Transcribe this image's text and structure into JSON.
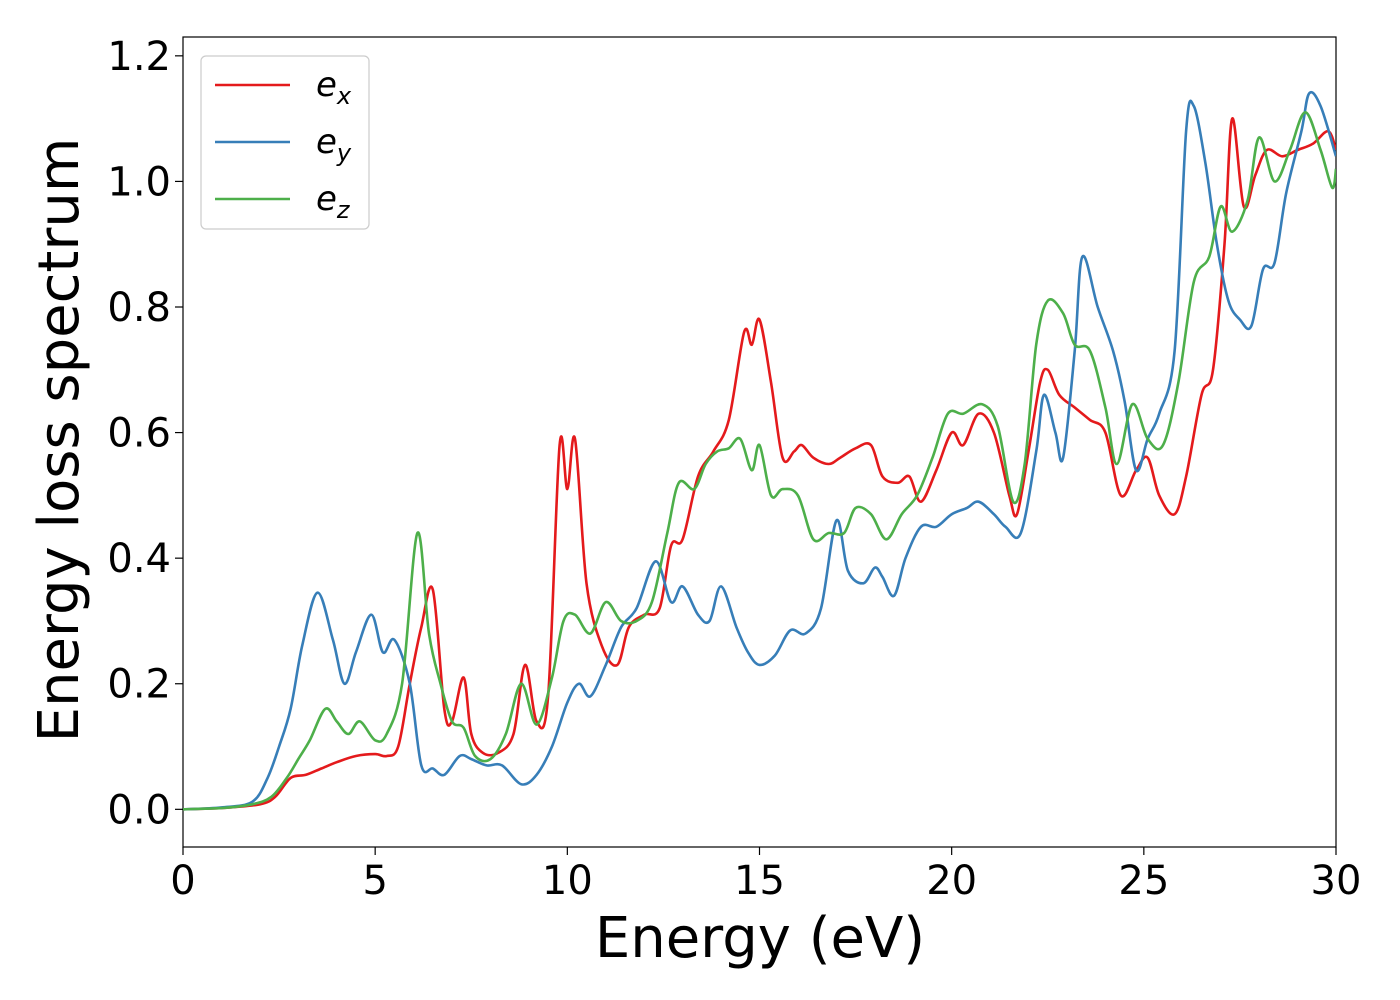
{
  "chart_data": {
    "type": "line",
    "title": "",
    "xlabel": "Energy (eV)",
    "ylabel": "Energy loss spectrum",
    "xlim": [
      0,
      30
    ],
    "ylim": [
      -0.06,
      1.23
    ],
    "xticks": [
      0,
      5,
      10,
      15,
      20,
      25,
      30
    ],
    "xtick_labels": [
      "0",
      "5",
      "10",
      "15",
      "20",
      "25",
      "30"
    ],
    "yticks": [
      0.0,
      0.2,
      0.4,
      0.6,
      0.8,
      1.0,
      1.2
    ],
    "ytick_labels": [
      "0.0",
      "0.2",
      "0.4",
      "0.6",
      "0.8",
      "1.0",
      "1.2"
    ],
    "grid": false,
    "legend_position": "top-left",
    "series": [
      {
        "name": "e",
        "subscript": "x",
        "color": "#e41a1c",
        "points": [
          [
            0,
            0
          ],
          [
            1,
            0.002
          ],
          [
            2,
            0.008
          ],
          [
            2.4,
            0.02
          ],
          [
            2.8,
            0.05
          ],
          [
            3.2,
            0.055
          ],
          [
            3.6,
            0.065
          ],
          [
            4,
            0.075
          ],
          [
            4.5,
            0.085
          ],
          [
            5,
            0.088
          ],
          [
            5.3,
            0.085
          ],
          [
            5.6,
            0.1
          ],
          [
            5.9,
            0.2
          ],
          [
            6.2,
            0.29
          ],
          [
            6.5,
            0.35
          ],
          [
            6.8,
            0.16
          ],
          [
            7,
            0.14
          ],
          [
            7.3,
            0.21
          ],
          [
            7.5,
            0.12
          ],
          [
            7.8,
            0.09
          ],
          [
            8.2,
            0.09
          ],
          [
            8.6,
            0.12
          ],
          [
            8.9,
            0.23
          ],
          [
            9.2,
            0.14
          ],
          [
            9.5,
            0.18
          ],
          [
            9.8,
            0.58
          ],
          [
            10,
            0.51
          ],
          [
            10.2,
            0.59
          ],
          [
            10.5,
            0.36
          ],
          [
            10.9,
            0.26
          ],
          [
            11.3,
            0.23
          ],
          [
            11.6,
            0.29
          ],
          [
            12,
            0.31
          ],
          [
            12.4,
            0.32
          ],
          [
            12.7,
            0.42
          ],
          [
            13,
            0.43
          ],
          [
            13.4,
            0.53
          ],
          [
            13.8,
            0.57
          ],
          [
            14.2,
            0.62
          ],
          [
            14.6,
            0.76
          ],
          [
            14.8,
            0.74
          ],
          [
            15,
            0.78
          ],
          [
            15.3,
            0.68
          ],
          [
            15.6,
            0.56
          ],
          [
            15.9,
            0.57
          ],
          [
            16.1,
            0.58
          ],
          [
            16.4,
            0.56
          ],
          [
            16.8,
            0.55
          ],
          [
            17.1,
            0.56
          ],
          [
            17.5,
            0.575
          ],
          [
            17.9,
            0.58
          ],
          [
            18.2,
            0.53
          ],
          [
            18.6,
            0.52
          ],
          [
            18.9,
            0.53
          ],
          [
            19.2,
            0.49
          ],
          [
            19.6,
            0.54
          ],
          [
            20,
            0.6
          ],
          [
            20.3,
            0.58
          ],
          [
            20.7,
            0.63
          ],
          [
            21.1,
            0.6
          ],
          [
            21.5,
            0.5
          ],
          [
            21.7,
            0.47
          ],
          [
            22,
            0.57
          ],
          [
            22.3,
            0.68
          ],
          [
            22.5,
            0.7
          ],
          [
            22.8,
            0.66
          ],
          [
            23.2,
            0.64
          ],
          [
            23.6,
            0.62
          ],
          [
            24,
            0.6
          ],
          [
            24.4,
            0.5
          ],
          [
            24.8,
            0.54
          ],
          [
            25.1,
            0.56
          ],
          [
            25.4,
            0.5
          ],
          [
            25.8,
            0.47
          ],
          [
            26.1,
            0.53
          ],
          [
            26.5,
            0.66
          ],
          [
            26.8,
            0.7
          ],
          [
            27.1,
            0.9
          ],
          [
            27.3,
            1.1
          ],
          [
            27.6,
            0.96
          ],
          [
            27.9,
            1.01
          ],
          [
            28.2,
            1.05
          ],
          [
            28.6,
            1.04
          ],
          [
            29,
            1.05
          ],
          [
            29.4,
            1.06
          ],
          [
            29.8,
            1.08
          ],
          [
            30,
            1.05
          ]
        ]
      },
      {
        "name": "e",
        "subscript": "y",
        "color": "#377eb8",
        "points": [
          [
            0,
            0
          ],
          [
            1,
            0.003
          ],
          [
            1.8,
            0.012
          ],
          [
            2.2,
            0.05
          ],
          [
            2.5,
            0.1
          ],
          [
            2.8,
            0.16
          ],
          [
            3.1,
            0.26
          ],
          [
            3.5,
            0.345
          ],
          [
            3.9,
            0.27
          ],
          [
            4.2,
            0.2
          ],
          [
            4.5,
            0.25
          ],
          [
            4.9,
            0.31
          ],
          [
            5.2,
            0.25
          ],
          [
            5.5,
            0.27
          ],
          [
            5.9,
            0.2
          ],
          [
            6.2,
            0.07
          ],
          [
            6.5,
            0.065
          ],
          [
            6.8,
            0.055
          ],
          [
            7.2,
            0.085
          ],
          [
            7.5,
            0.08
          ],
          [
            7.9,
            0.07
          ],
          [
            8.3,
            0.07
          ],
          [
            8.8,
            0.04
          ],
          [
            9.2,
            0.055
          ],
          [
            9.6,
            0.1
          ],
          [
            10,
            0.17
          ],
          [
            10.3,
            0.2
          ],
          [
            10.6,
            0.18
          ],
          [
            11,
            0.23
          ],
          [
            11.4,
            0.29
          ],
          [
            11.8,
            0.32
          ],
          [
            12.3,
            0.395
          ],
          [
            12.7,
            0.33
          ],
          [
            13,
            0.355
          ],
          [
            13.4,
            0.31
          ],
          [
            13.7,
            0.3
          ],
          [
            14,
            0.355
          ],
          [
            14.4,
            0.29
          ],
          [
            14.7,
            0.25
          ],
          [
            15,
            0.23
          ],
          [
            15.4,
            0.245
          ],
          [
            15.8,
            0.285
          ],
          [
            16.2,
            0.28
          ],
          [
            16.6,
            0.32
          ],
          [
            17,
            0.46
          ],
          [
            17.3,
            0.38
          ],
          [
            17.7,
            0.36
          ],
          [
            18,
            0.385
          ],
          [
            18.2,
            0.37
          ],
          [
            18.5,
            0.34
          ],
          [
            18.8,
            0.4
          ],
          [
            19.2,
            0.45
          ],
          [
            19.6,
            0.45
          ],
          [
            20,
            0.47
          ],
          [
            20.4,
            0.48
          ],
          [
            20.7,
            0.49
          ],
          [
            21.1,
            0.47
          ],
          [
            21.4,
            0.45
          ],
          [
            21.8,
            0.44
          ],
          [
            22.2,
            0.57
          ],
          [
            22.4,
            0.66
          ],
          [
            22.7,
            0.6
          ],
          [
            22.9,
            0.56
          ],
          [
            23.2,
            0.73
          ],
          [
            23.4,
            0.88
          ],
          [
            23.8,
            0.8
          ],
          [
            24.2,
            0.73
          ],
          [
            24.5,
            0.65
          ],
          [
            24.8,
            0.54
          ],
          [
            25.1,
            0.59
          ],
          [
            25.4,
            0.63
          ],
          [
            25.8,
            0.73
          ],
          [
            26.1,
            1.08
          ],
          [
            26.3,
            1.12
          ],
          [
            26.6,
            1.03
          ],
          [
            26.9,
            0.9
          ],
          [
            27.2,
            0.81
          ],
          [
            27.5,
            0.78
          ],
          [
            27.8,
            0.77
          ],
          [
            28.1,
            0.86
          ],
          [
            28.4,
            0.87
          ],
          [
            28.7,
            0.98
          ],
          [
            29.1,
            1.08
          ],
          [
            29.3,
            1.14
          ],
          [
            29.6,
            1.12
          ],
          [
            30,
            1.04
          ]
        ]
      },
      {
        "name": "e",
        "subscript": "z",
        "color": "#4daf4a",
        "points": [
          [
            0,
            0
          ],
          [
            1,
            0.002
          ],
          [
            1.8,
            0.008
          ],
          [
            2.3,
            0.02
          ],
          [
            2.7,
            0.05
          ],
          [
            3,
            0.08
          ],
          [
            3.3,
            0.11
          ],
          [
            3.7,
            0.16
          ],
          [
            4,
            0.14
          ],
          [
            4.3,
            0.12
          ],
          [
            4.6,
            0.14
          ],
          [
            5,
            0.11
          ],
          [
            5.3,
            0.12
          ],
          [
            5.7,
            0.2
          ],
          [
            6.1,
            0.44
          ],
          [
            6.4,
            0.28
          ],
          [
            6.7,
            0.2
          ],
          [
            7,
            0.14
          ],
          [
            7.3,
            0.13
          ],
          [
            7.6,
            0.085
          ],
          [
            8,
            0.08
          ],
          [
            8.4,
            0.12
          ],
          [
            8.8,
            0.2
          ],
          [
            9.2,
            0.135
          ],
          [
            9.6,
            0.21
          ],
          [
            9.9,
            0.3
          ],
          [
            10.2,
            0.31
          ],
          [
            10.6,
            0.28
          ],
          [
            11,
            0.33
          ],
          [
            11.4,
            0.3
          ],
          [
            11.8,
            0.3
          ],
          [
            12.2,
            0.33
          ],
          [
            12.6,
            0.44
          ],
          [
            12.9,
            0.52
          ],
          [
            13.3,
            0.51
          ],
          [
            13.6,
            0.55
          ],
          [
            13.9,
            0.57
          ],
          [
            14.2,
            0.575
          ],
          [
            14.5,
            0.59
          ],
          [
            14.8,
            0.54
          ],
          [
            15,
            0.58
          ],
          [
            15.3,
            0.5
          ],
          [
            15.6,
            0.51
          ],
          [
            16,
            0.5
          ],
          [
            16.4,
            0.43
          ],
          [
            16.8,
            0.44
          ],
          [
            17.2,
            0.44
          ],
          [
            17.5,
            0.48
          ],
          [
            17.9,
            0.47
          ],
          [
            18.3,
            0.43
          ],
          [
            18.7,
            0.47
          ],
          [
            19.1,
            0.5
          ],
          [
            19.5,
            0.56
          ],
          [
            19.9,
            0.63
          ],
          [
            20.3,
            0.63
          ],
          [
            20.8,
            0.645
          ],
          [
            21.2,
            0.61
          ],
          [
            21.6,
            0.49
          ],
          [
            21.9,
            0.55
          ],
          [
            22.2,
            0.74
          ],
          [
            22.5,
            0.81
          ],
          [
            22.9,
            0.79
          ],
          [
            23.2,
            0.74
          ],
          [
            23.6,
            0.73
          ],
          [
            24,
            0.64
          ],
          [
            24.3,
            0.55
          ],
          [
            24.7,
            0.645
          ],
          [
            25.1,
            0.59
          ],
          [
            25.5,
            0.58
          ],
          [
            25.9,
            0.68
          ],
          [
            26.3,
            0.84
          ],
          [
            26.7,
            0.88
          ],
          [
            27,
            0.96
          ],
          [
            27.3,
            0.92
          ],
          [
            27.7,
            0.97
          ],
          [
            28,
            1.07
          ],
          [
            28.4,
            1.0
          ],
          [
            28.8,
            1.05
          ],
          [
            29.2,
            1.11
          ],
          [
            29.6,
            1.05
          ],
          [
            29.9,
            0.99
          ],
          [
            30,
            1.02
          ]
        ]
      }
    ]
  }
}
